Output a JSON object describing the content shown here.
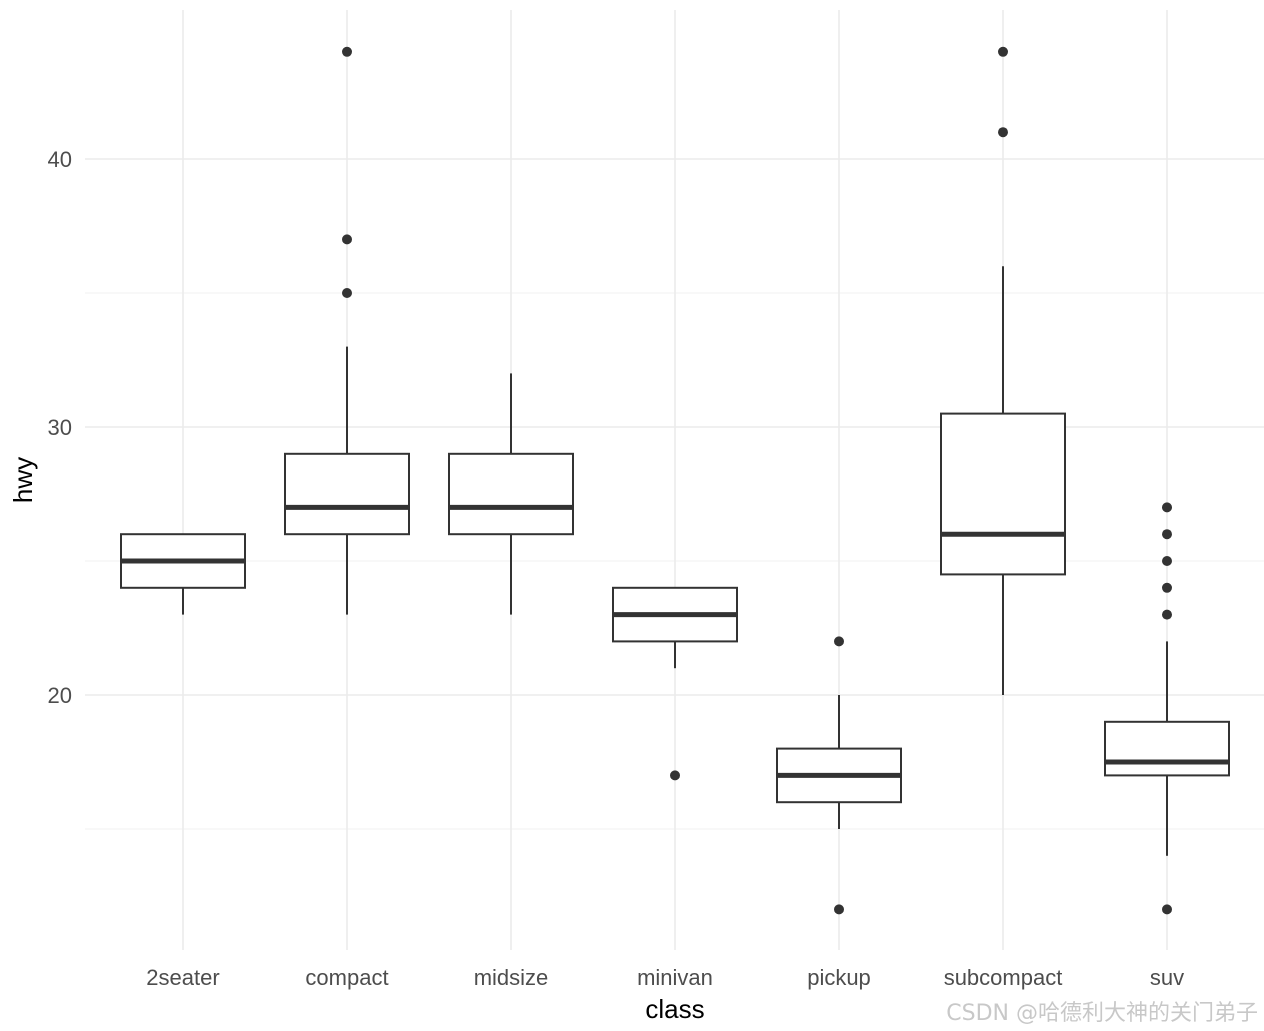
{
  "chart_data": {
    "type": "boxplot",
    "xlabel": "class",
    "ylabel": "hwy",
    "ylim": [
      11,
      45
    ],
    "y_ticks": [
      20,
      30,
      40
    ],
    "y_minor_ticks": [
      15,
      25,
      35
    ],
    "categories": [
      "2seater",
      "compact",
      "midsize",
      "minivan",
      "pickup",
      "subcompact",
      "suv"
    ],
    "boxes": [
      {
        "category": "2seater",
        "whisker_low": 23,
        "q1": 24,
        "median": 25,
        "q3": 26,
        "whisker_high": 26,
        "outliers": []
      },
      {
        "category": "compact",
        "whisker_low": 23,
        "q1": 26,
        "median": 27,
        "q3": 29,
        "whisker_high": 33,
        "outliers": [
          35,
          37,
          44
        ]
      },
      {
        "category": "midsize",
        "whisker_low": 23,
        "q1": 26,
        "median": 27,
        "q3": 29,
        "whisker_high": 32,
        "outliers": []
      },
      {
        "category": "minivan",
        "whisker_low": 21,
        "q1": 22,
        "median": 23,
        "q3": 24,
        "whisker_high": 24,
        "outliers": [
          17
        ]
      },
      {
        "category": "pickup",
        "whisker_low": 15,
        "q1": 16,
        "median": 17,
        "q3": 18,
        "whisker_high": 20,
        "outliers": [
          12,
          22
        ]
      },
      {
        "category": "subcompact",
        "whisker_low": 20,
        "q1": 24.5,
        "median": 26,
        "q3": 30.5,
        "whisker_high": 36,
        "outliers": [
          41,
          44
        ]
      },
      {
        "category": "suv",
        "whisker_low": 14,
        "q1": 17,
        "median": 17.5,
        "q3": 19,
        "whisker_high": 22,
        "outliers": [
          12,
          23,
          24,
          25,
          26,
          27
        ]
      }
    ],
    "colors": {
      "box": "#333333",
      "grid_major": "#ebebeb",
      "grid_minor": "#f4f4f4",
      "axis_text": "#4d4d4d",
      "title_text": "#000000"
    }
  },
  "watermark": "CSDN @哈德利大神的关门弟子"
}
